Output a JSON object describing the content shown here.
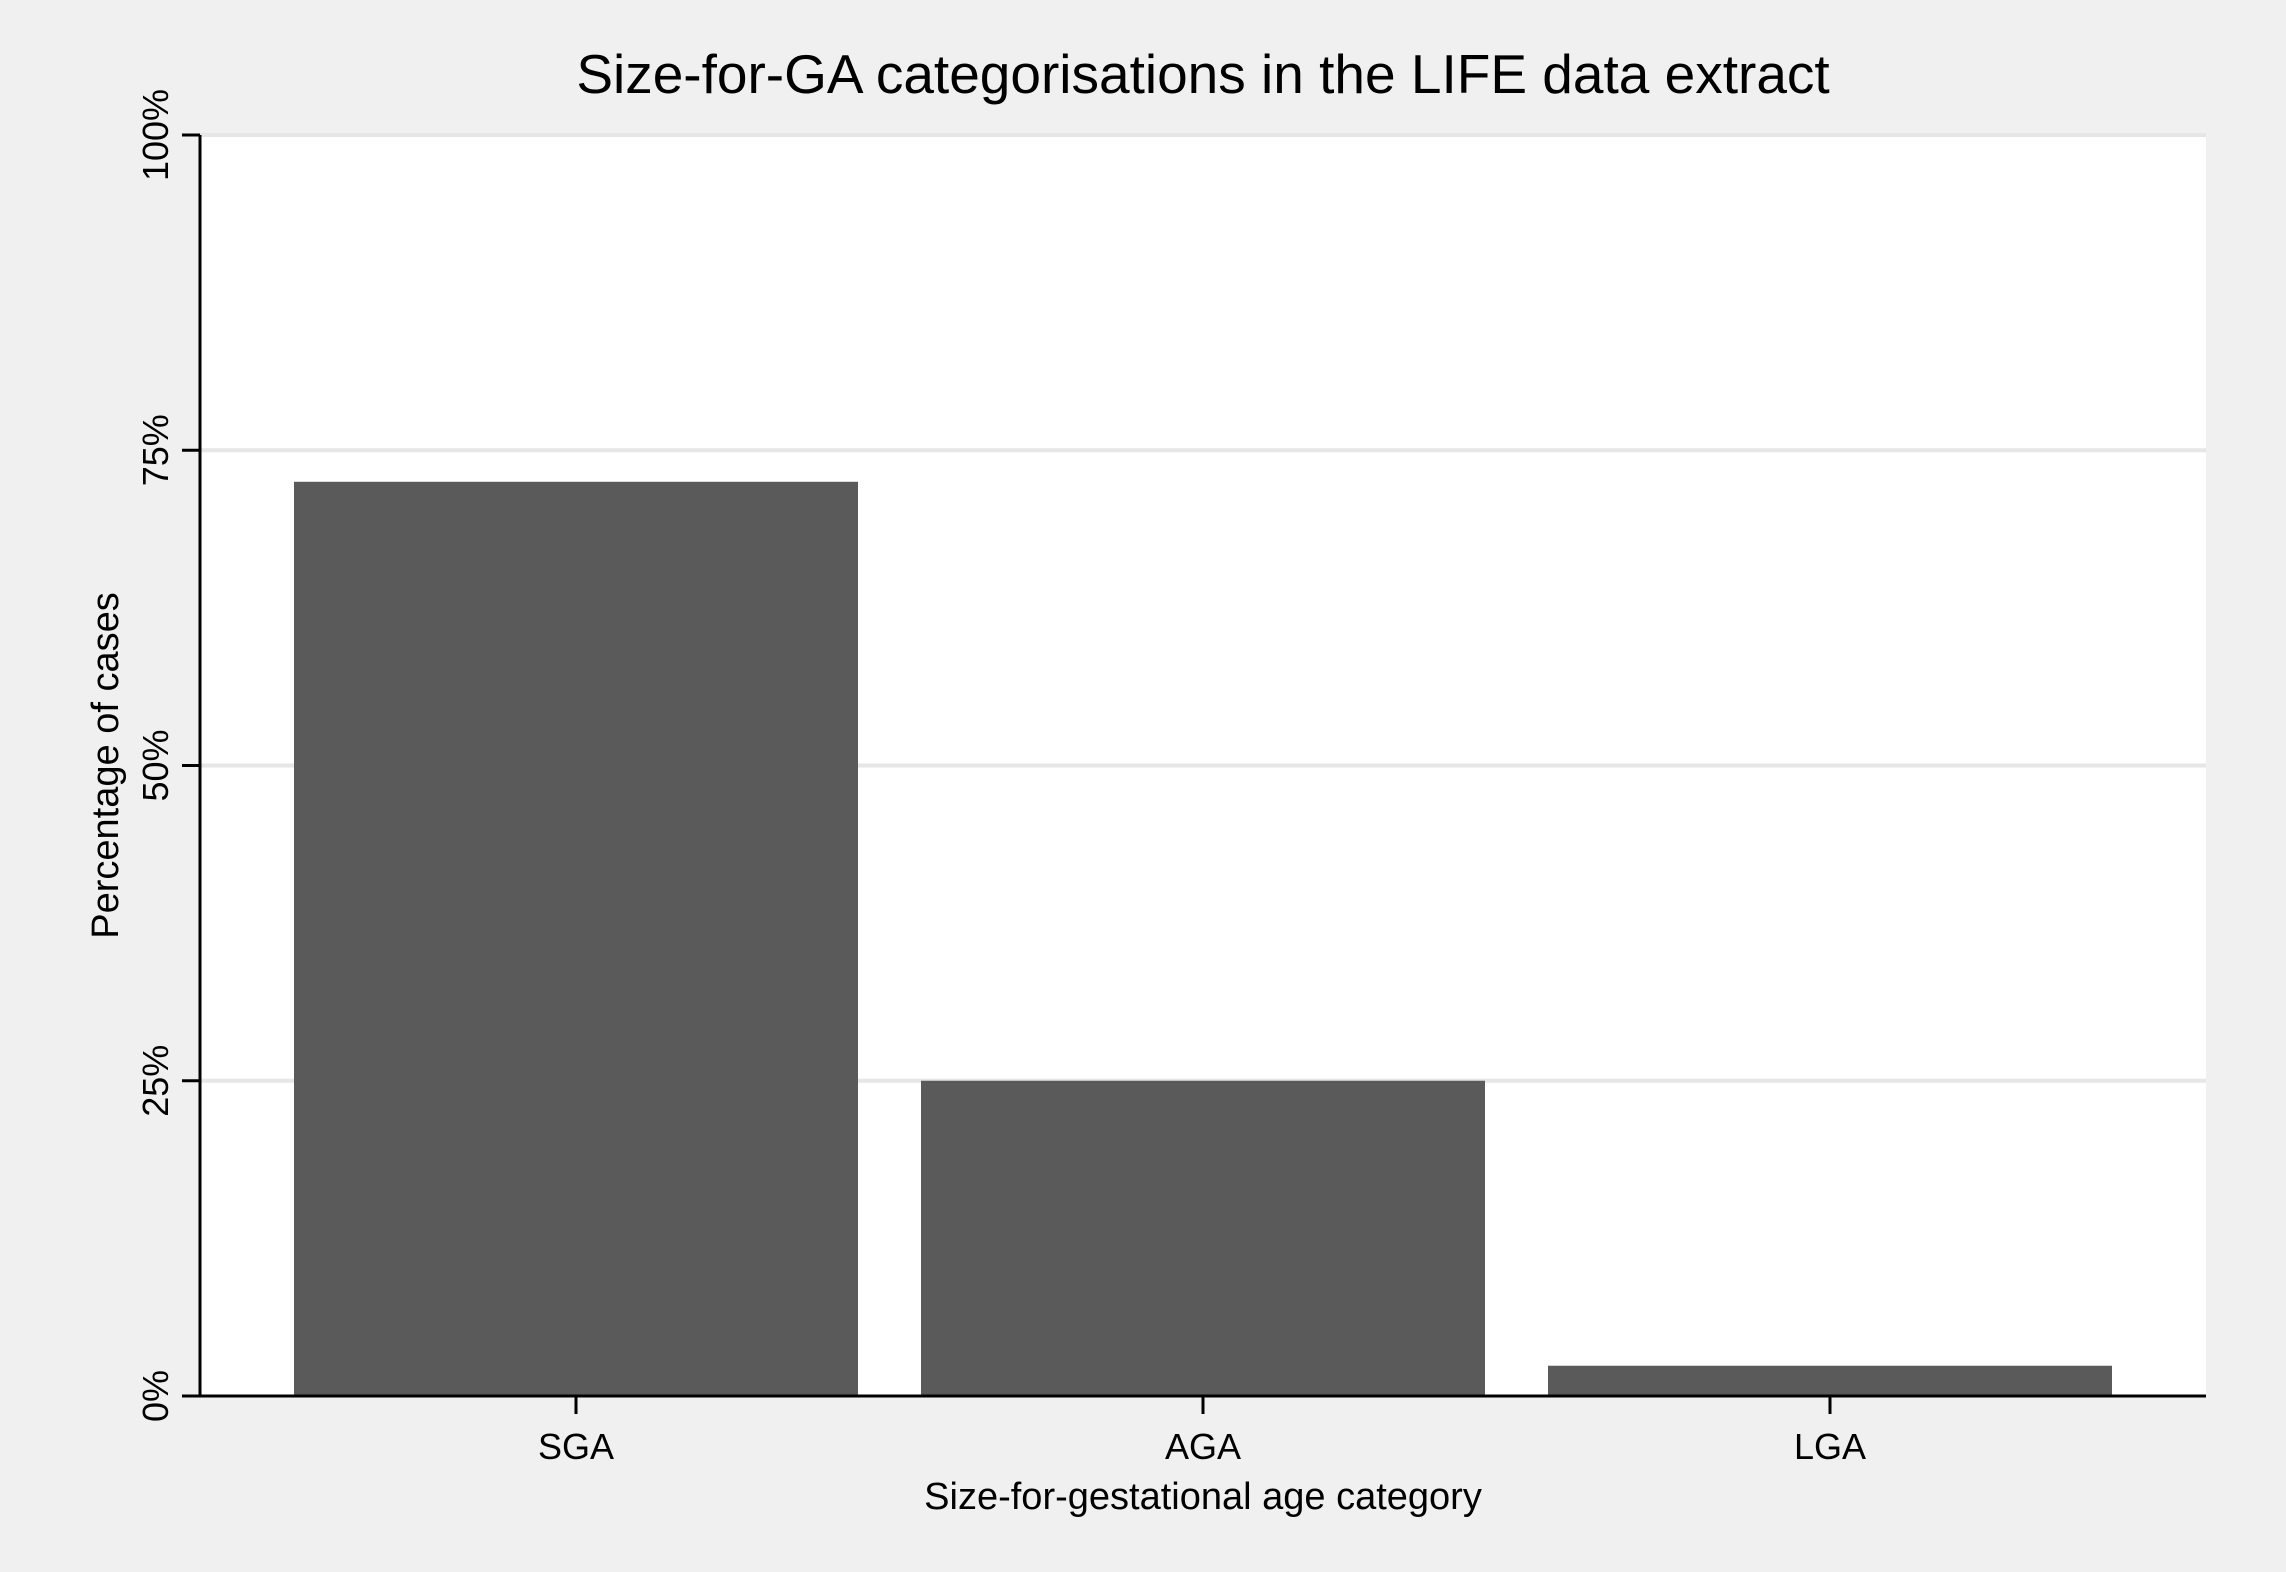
{
  "chart_data": {
    "type": "bar",
    "title": "Size-for-GA categorisations in the LIFE data extract",
    "xlabel": "Size-for-gestational age category",
    "ylabel": "Percentage of cases",
    "categories": [
      "SGA",
      "AGA",
      "LGA"
    ],
    "values": [
      72.5,
      25.0,
      2.4
    ],
    "ylim": [
      0,
      100
    ],
    "yticks": [
      0,
      25,
      50,
      75,
      100
    ],
    "ytick_labels": [
      "0%",
      "25%",
      "50%",
      "75%",
      "100%"
    ],
    "grid": true,
    "legend": "none",
    "colors": {
      "bar": "#5a5a5a",
      "plot_background": "#ffffff",
      "page_background": "#f0f0f0",
      "gridline": "#e6e6e6",
      "axis": "#000000"
    }
  }
}
